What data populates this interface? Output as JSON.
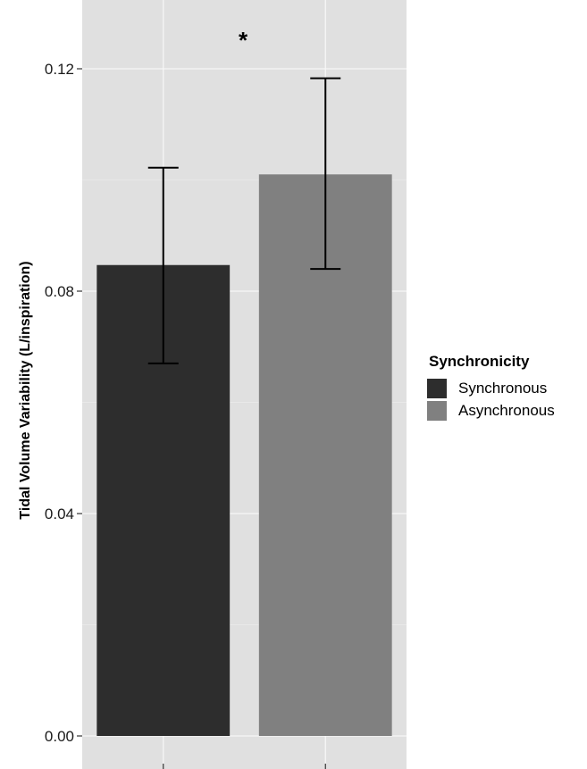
{
  "chart_data": {
    "type": "bar",
    "categories": [
      "Synchronous",
      "Asynchronous"
    ],
    "values": [
      0.0847,
      0.101
    ],
    "error_low": [
      0.067,
      0.084
    ],
    "error_high": [
      0.1022,
      0.1183
    ],
    "colors": [
      "#2d2d2d",
      "#808080"
    ],
    "ylabel": "Tidal Volume Variability (L/inspiration)",
    "xlabel": "",
    "ylim": [
      0,
      0.128
    ],
    "yticks": [
      0.0,
      0.04,
      0.08,
      0.12
    ],
    "ytick_labels": [
      "0.00",
      "0.04",
      "0.08",
      "0.12"
    ],
    "annotation": "*",
    "grid": true,
    "legend": {
      "title": "Synchronicity",
      "position": "right",
      "entries": [
        "Synchronous",
        "Asynchronous"
      ]
    }
  }
}
